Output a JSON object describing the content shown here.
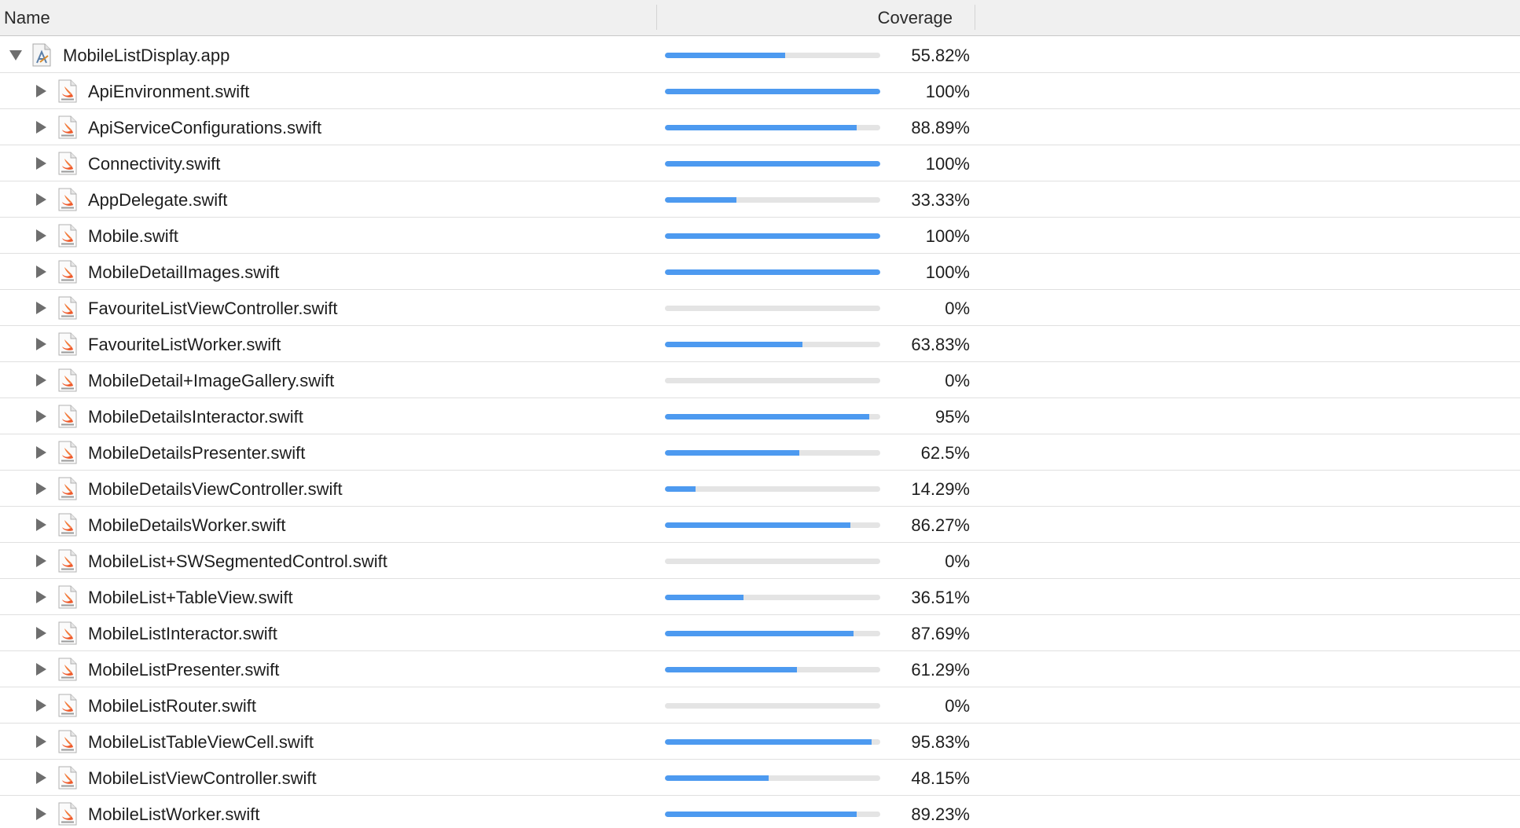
{
  "header": {
    "name_label": "Name",
    "coverage_label": "Coverage"
  },
  "colors": {
    "bar_fill": "#4d9af0",
    "bar_track": "#e4e4e4",
    "header_bg": "#f0f0f0"
  },
  "root": {
    "name": "MobileListDisplay.app",
    "coverage_text": "55.82%",
    "coverage": 55.82,
    "expanded": true,
    "icon": "app-icon"
  },
  "files": [
    {
      "name": "ApiEnvironment.swift",
      "coverage_text": "100%",
      "coverage": 100
    },
    {
      "name": "ApiServiceConfigurations.swift",
      "coverage_text": "88.89%",
      "coverage": 88.89
    },
    {
      "name": "Connectivity.swift",
      "coverage_text": "100%",
      "coverage": 100
    },
    {
      "name": "AppDelegate.swift",
      "coverage_text": "33.33%",
      "coverage": 33.33
    },
    {
      "name": "Mobile.swift",
      "coverage_text": "100%",
      "coverage": 100
    },
    {
      "name": "MobileDetailImages.swift",
      "coverage_text": "100%",
      "coverage": 100
    },
    {
      "name": "FavouriteListViewController.swift",
      "coverage_text": "0%",
      "coverage": 0
    },
    {
      "name": "FavouriteListWorker.swift",
      "coverage_text": "63.83%",
      "coverage": 63.83
    },
    {
      "name": "MobileDetail+ImageGallery.swift",
      "coverage_text": "0%",
      "coverage": 0
    },
    {
      "name": "MobileDetailsInteractor.swift",
      "coverage_text": "95%",
      "coverage": 95
    },
    {
      "name": "MobileDetailsPresenter.swift",
      "coverage_text": "62.5%",
      "coverage": 62.5
    },
    {
      "name": "MobileDetailsViewController.swift",
      "coverage_text": "14.29%",
      "coverage": 14.29
    },
    {
      "name": "MobileDetailsWorker.swift",
      "coverage_text": "86.27%",
      "coverage": 86.27
    },
    {
      "name": "MobileList+SWSegmentedControl.swift",
      "coverage_text": "0%",
      "coverage": 0
    },
    {
      "name": "MobileList+TableView.swift",
      "coverage_text": "36.51%",
      "coverage": 36.51
    },
    {
      "name": "MobileListInteractor.swift",
      "coverage_text": "87.69%",
      "coverage": 87.69
    },
    {
      "name": "MobileListPresenter.swift",
      "coverage_text": "61.29%",
      "coverage": 61.29
    },
    {
      "name": "MobileListRouter.swift",
      "coverage_text": "0%",
      "coverage": 0
    },
    {
      "name": "MobileListTableViewCell.swift",
      "coverage_text": "95.83%",
      "coverage": 95.83
    },
    {
      "name": "MobileListViewController.swift",
      "coverage_text": "48.15%",
      "coverage": 48.15
    },
    {
      "name": "MobileListWorker.swift",
      "coverage_text": "89.23%",
      "coverage": 89.23
    }
  ],
  "file_icon": "swift-file-icon",
  "disclosure_icon": "disclosure-triangle-icon"
}
